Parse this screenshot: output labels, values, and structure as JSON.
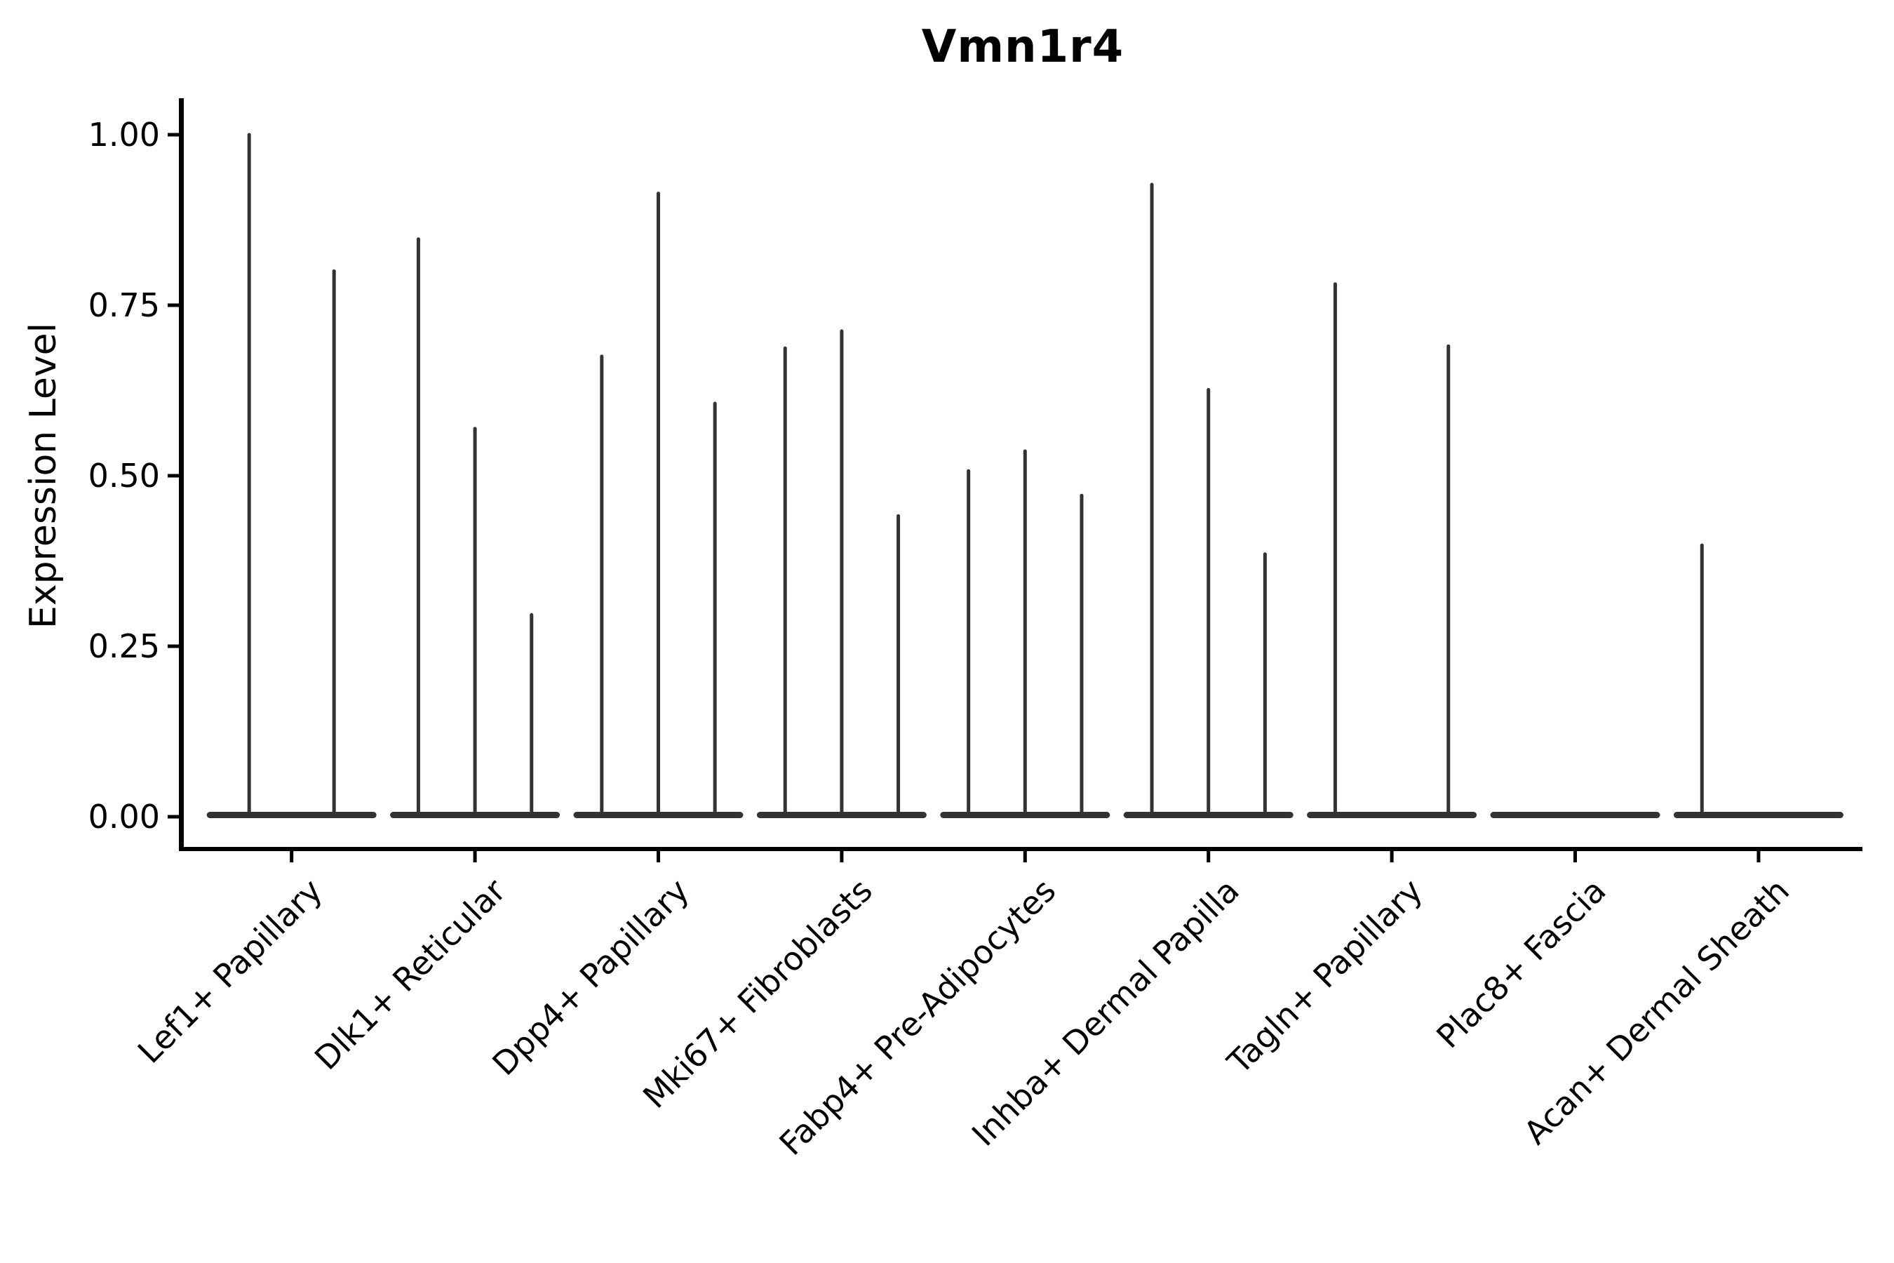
{
  "figure": {
    "title": "Vmn1r4",
    "background_color": "#ffffff"
  },
  "chart_data": {
    "type": "violin",
    "title": "Vmn1r4",
    "xlabel": "",
    "ylabel": "Expression Level",
    "ylim": [
      0,
      1.0
    ],
    "grid": false,
    "legend": "none",
    "yticks": [
      {
        "value": 1.0,
        "label": "1.00"
      },
      {
        "value": 0.75,
        "label": "0.75"
      },
      {
        "value": 0.5,
        "label": "0.50"
      },
      {
        "value": 0.25,
        "label": "0.25"
      },
      {
        "value": 0.0,
        "label": "0.00"
      }
    ],
    "x_tick_rotation_deg": 45,
    "style": {
      "violin_color": "#333333",
      "axis_color": "#000000",
      "text_color": "#000000",
      "background": "#ffffff"
    },
    "categories": [
      "Lef1+ Papillary",
      "Dlk1+ Reticular",
      "Dpp4+ Papillary",
      "Mki67+ Fibroblasts",
      "Fabp4+ Pre-Adipocytes",
      "Inhba+ Dermal Papilla",
      "Tagln+ Papillary",
      "Plac8+ Fascia",
      "Acan+ Dermal Sheath"
    ],
    "violins": [
      {
        "category": "Lef1+ Papillary",
        "base_at_zero": true,
        "spikes": [
          {
            "pos": 0.25,
            "value": 1.0
          },
          {
            "pos": 0.75,
            "value": 0.8
          }
        ]
      },
      {
        "category": "Dlk1+ Reticular",
        "base_at_zero": true,
        "spikes": [
          {
            "pos": 0.1667,
            "value": 0.847
          },
          {
            "pos": 0.5,
            "value": 0.569
          },
          {
            "pos": 0.8333,
            "value": 0.296
          }
        ]
      },
      {
        "category": "Dpp4+ Papillary",
        "base_at_zero": true,
        "spikes": [
          {
            "pos": 0.1667,
            "value": 0.675
          },
          {
            "pos": 0.5,
            "value": 0.914
          },
          {
            "pos": 0.8333,
            "value": 0.606
          }
        ]
      },
      {
        "category": "Mki67+ Fibroblasts",
        "base_at_zero": true,
        "spikes": [
          {
            "pos": 0.1667,
            "value": 0.687
          },
          {
            "pos": 0.5,
            "value": 0.712
          },
          {
            "pos": 0.8333,
            "value": 0.441
          }
        ]
      },
      {
        "category": "Fabp4+ Pre-Adipocytes",
        "base_at_zero": true,
        "spikes": [
          {
            "pos": 0.1667,
            "value": 0.507
          },
          {
            "pos": 0.5,
            "value": 0.536
          },
          {
            "pos": 0.8333,
            "value": 0.471
          }
        ]
      },
      {
        "category": "Inhba+ Dermal Papilla",
        "base_at_zero": true,
        "spikes": [
          {
            "pos": 0.1667,
            "value": 0.927
          },
          {
            "pos": 0.5,
            "value": 0.626
          },
          {
            "pos": 0.8333,
            "value": 0.385
          }
        ]
      },
      {
        "category": "Tagln+ Papillary",
        "base_at_zero": true,
        "spikes": [
          {
            "pos": 0.1667,
            "value": 0.781
          },
          {
            "pos": 0.8333,
            "value": 0.69
          }
        ]
      },
      {
        "category": "Plac8+ Fascia",
        "base_at_zero": true,
        "spikes": []
      },
      {
        "category": "Acan+ Dermal Sheath",
        "base_at_zero": true,
        "spikes": [
          {
            "pos": 0.1667,
            "value": 0.398
          }
        ]
      }
    ]
  }
}
